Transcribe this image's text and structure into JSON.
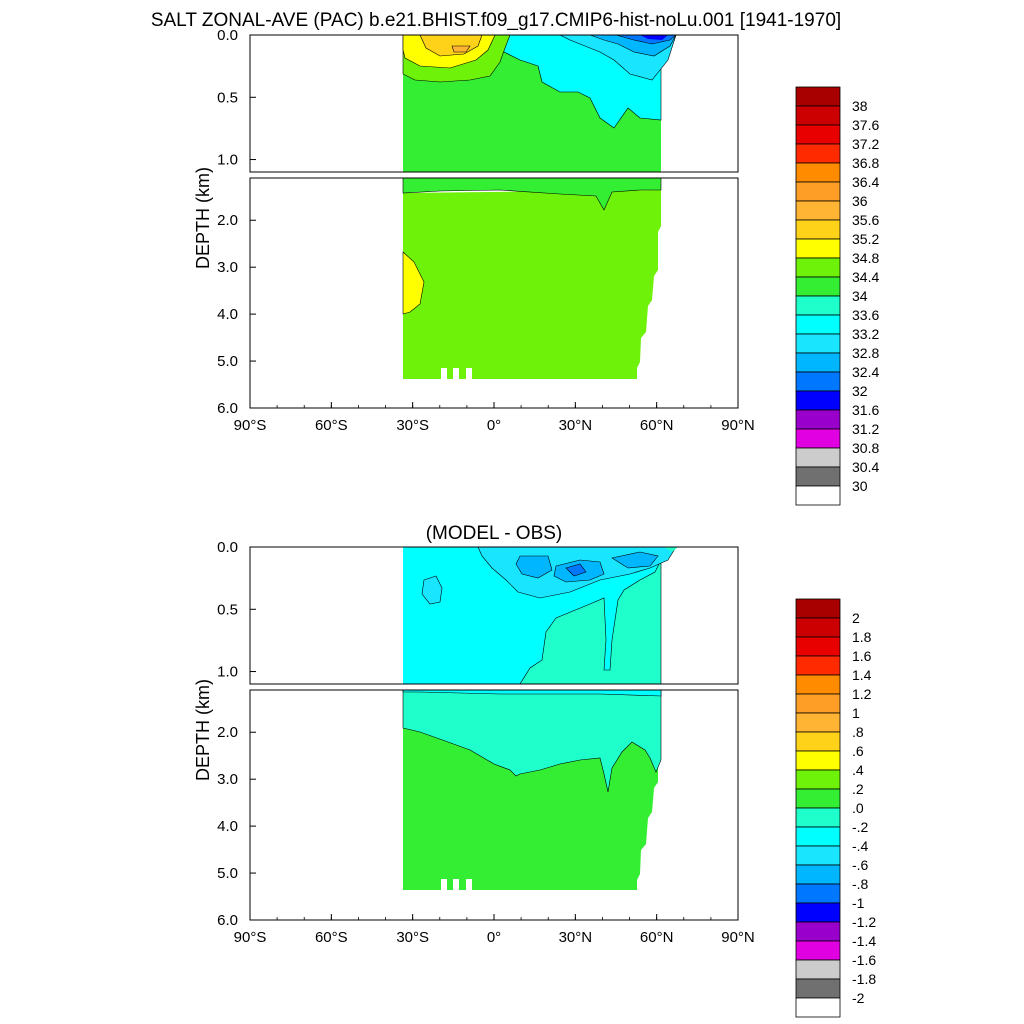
{
  "colors": {
    "green": "#33ee33",
    "lime": "#6ef20a",
    "yellow": "#ffff00",
    "gold": "#ffd21a",
    "aqua": "#00ffff",
    "teal": "#1fffcc",
    "cyan1": "#1ae5ff",
    "cyan2": "#00b7ff",
    "blue1": "#0077ff",
    "blue2": "#0000ff"
  },
  "chart_data": [
    {
      "type": "heatmap",
      "title": "SALT ZONAL-AVE (PAC) b.e21.BHIST.f09_g17.CMIP6-hist-noLu.001 [1941-1970]",
      "ylabel": "DEPTH (km)",
      "xlabel": "",
      "x_ticks": [
        "90°S",
        "60°S",
        "30°S",
        "0°",
        "30°N",
        "60°N",
        "90°N"
      ],
      "xlim": [
        -90,
        90
      ],
      "y_ticks_upper": [
        "0.0",
        "0.5",
        "1.0"
      ],
      "y_ticks_lower": [
        "2.0",
        "3.0",
        "4.0",
        "5.0",
        "6.0"
      ],
      "ylim_upper_km": [
        0,
        1.1
      ],
      "ylim_lower_km": [
        1.1,
        6.0
      ],
      "colorbar_labels": [
        "38",
        "37.6",
        "37.2",
        "36.8",
        "36.4",
        "36",
        "35.6",
        "35.2",
        "34.8",
        "34.4",
        "34",
        "33.6",
        "33.2",
        "32.8",
        "32.4",
        "32",
        "31.6",
        "31.2",
        "30.8",
        "30.4",
        "30"
      ],
      "colorbar_colors": [
        "#a80000",
        "#cc0000",
        "#e80000",
        "#ff2a00",
        "#ff8c00",
        "#ff9e26",
        "#ffb433",
        "#ffd21a",
        "#ffff00",
        "#6ef20a",
        "#33ee33",
        "#1fffcc",
        "#00ffff",
        "#1ae5ff",
        "#00b7ff",
        "#0077ff",
        "#0000ff",
        "#9900cc",
        "#e100e1",
        "#cccccc",
        "#707070",
        "#ffffff"
      ]
    },
    {
      "type": "heatmap",
      "title": "(MODEL - OBS)",
      "ylabel": "DEPTH (km)",
      "xlabel": "",
      "x_ticks": [
        "90°S",
        "60°S",
        "30°S",
        "0°",
        "30°N",
        "60°N",
        "90°N"
      ],
      "xlim": [
        -90,
        90
      ],
      "y_ticks_upper": [
        "0.0",
        "0.5",
        "1.0"
      ],
      "y_ticks_lower": [
        "2.0",
        "3.0",
        "4.0",
        "5.0",
        "6.0"
      ],
      "ylim_upper_km": [
        0,
        1.1
      ],
      "ylim_lower_km": [
        1.1,
        6.0
      ],
      "colorbar_labels": [
        "2",
        "1.8",
        "1.6",
        "1.4",
        "1.2",
        "1",
        ".8",
        ".6",
        ".4",
        ".2",
        ".0",
        "-.2",
        "-.4",
        "-.6",
        "-.8",
        "-1",
        "-1.2",
        "-1.4",
        "-1.6",
        "-1.8",
        "-2"
      ],
      "colorbar_colors": [
        "#a80000",
        "#cc0000",
        "#e80000",
        "#ff2a00",
        "#ff8c00",
        "#ff9e26",
        "#ffb433",
        "#ffd21a",
        "#ffff00",
        "#6ef20a",
        "#33ee33",
        "#1fffcc",
        "#00ffff",
        "#1ae5ff",
        "#00b7ff",
        "#0077ff",
        "#0000ff",
        "#9900cc",
        "#e100e1",
        "#cccccc",
        "#707070",
        "#ffffff"
      ]
    }
  ]
}
